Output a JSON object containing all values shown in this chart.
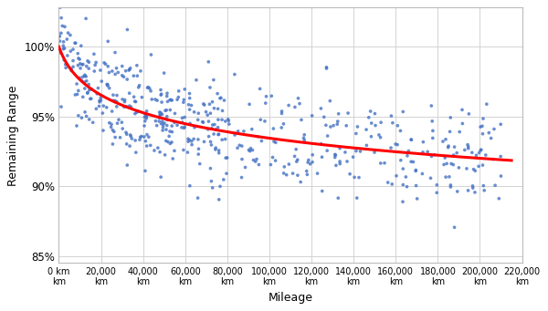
{
  "title": "",
  "xlabel": "Mileage",
  "ylabel": "Remaining Range",
  "xlim": [
    0,
    220000
  ],
  "ylim": [
    0.845,
    1.028
  ],
  "yticks": [
    0.85,
    0.9,
    0.95,
    1.0
  ],
  "ytick_labels": [
    "85%",
    "90%",
    "95%",
    "100%"
  ],
  "xticks": [
    0,
    20000,
    40000,
    60000,
    80000,
    100000,
    120000,
    140000,
    160000,
    180000,
    200000,
    220000
  ],
  "dot_color": "#4472C4",
  "curve_color": "#FF0000",
  "background_color": "#FFFFFF",
  "grid_color": "#CCCCCC",
  "curve_a": 0.02,
  "curve_b": 0.9798,
  "scatter_seed": 12,
  "scatter_n": 550
}
